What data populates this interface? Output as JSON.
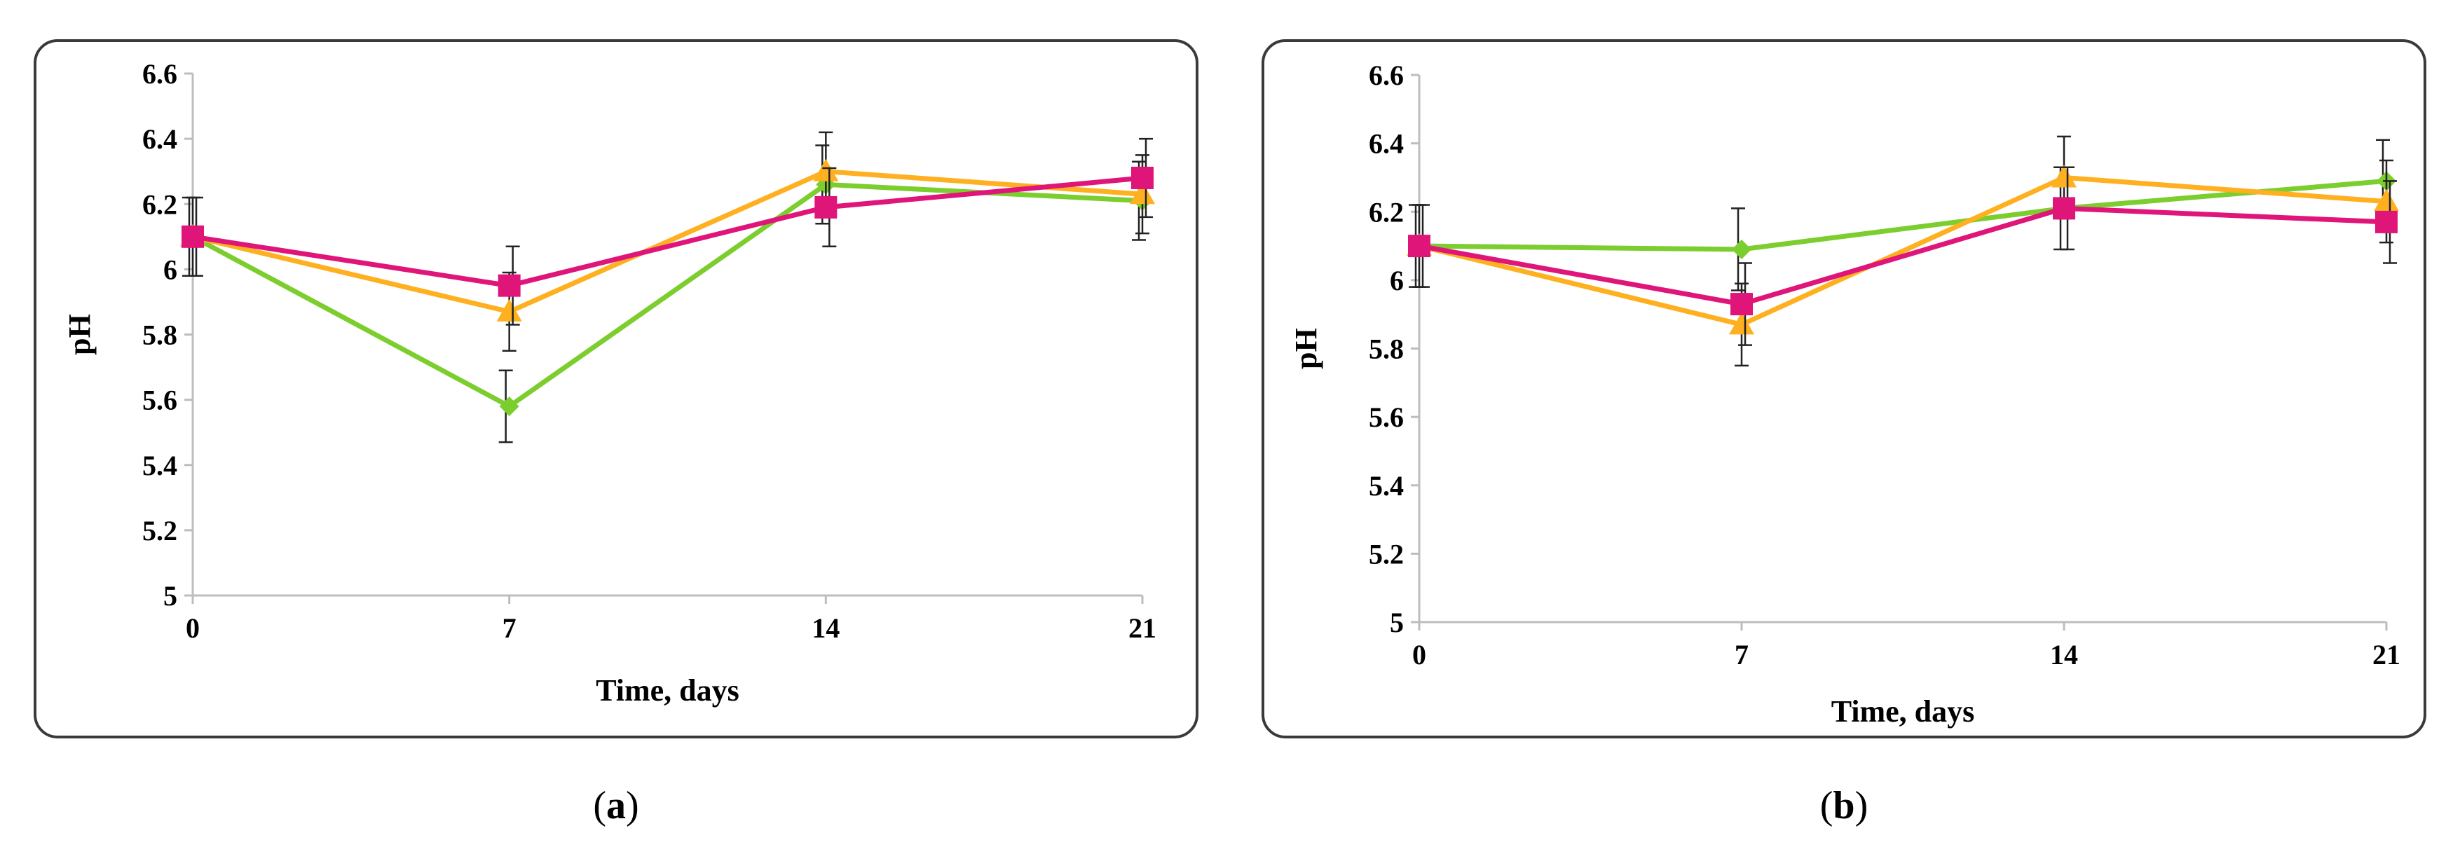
{
  "colors": {
    "green": "#7ccd2e",
    "orange": "#ffb020",
    "magenta": "#e0157a"
  },
  "captions": {
    "a": "a",
    "b": "b"
  },
  "chart_data": [
    {
      "type": "line",
      "panel": "a",
      "xlabel": "Time, days",
      "ylabel": "pH",
      "x": [
        0,
        7,
        14,
        21
      ],
      "xticks": [
        "0",
        "7",
        "14",
        "21"
      ],
      "ylim": [
        5,
        6.6
      ],
      "yticks": [
        "5",
        "5.2",
        "5.4",
        "5.6",
        "5.8",
        "6",
        "6.2",
        "6.4",
        "6.6"
      ],
      "grid": false,
      "series": [
        {
          "color": "green",
          "marker": "diamond",
          "values": [
            6.1,
            5.58,
            6.26,
            6.21
          ],
          "error": [
            0.12,
            0.11,
            0.12,
            0.12
          ]
        },
        {
          "color": "orange",
          "marker": "triangle",
          "values": [
            6.1,
            5.87,
            6.3,
            6.23
          ],
          "error": [
            0.12,
            0.12,
            0.12,
            0.12
          ]
        },
        {
          "color": "magenta",
          "marker": "square",
          "values": [
            6.1,
            5.95,
            6.19,
            6.28
          ],
          "error": [
            0.12,
            0.12,
            0.12,
            0.12
          ]
        }
      ]
    },
    {
      "type": "line",
      "panel": "b",
      "xlabel": "Time, days",
      "ylabel": "pH",
      "x": [
        0,
        7,
        14,
        21
      ],
      "xticks": [
        "0",
        "7",
        "14",
        "21"
      ],
      "ylim": [
        5,
        6.6
      ],
      "yticks": [
        "5",
        "5.2",
        "5.4",
        "5.6",
        "5.8",
        "6",
        "6.2",
        "6.4",
        "6.6"
      ],
      "grid": false,
      "series": [
        {
          "color": "green",
          "marker": "diamond",
          "values": [
            6.1,
            6.09,
            6.21,
            6.29
          ],
          "error": [
            0.12,
            0.12,
            0.12,
            0.12
          ]
        },
        {
          "color": "orange",
          "marker": "triangle",
          "values": [
            6.1,
            5.87,
            6.3,
            6.23
          ],
          "error": [
            0.12,
            0.12,
            0.12,
            0.12
          ]
        },
        {
          "color": "magenta",
          "marker": "square",
          "values": [
            6.1,
            5.93,
            6.21,
            6.17
          ],
          "error": [
            0.12,
            0.12,
            0.12,
            0.12
          ]
        }
      ]
    }
  ]
}
